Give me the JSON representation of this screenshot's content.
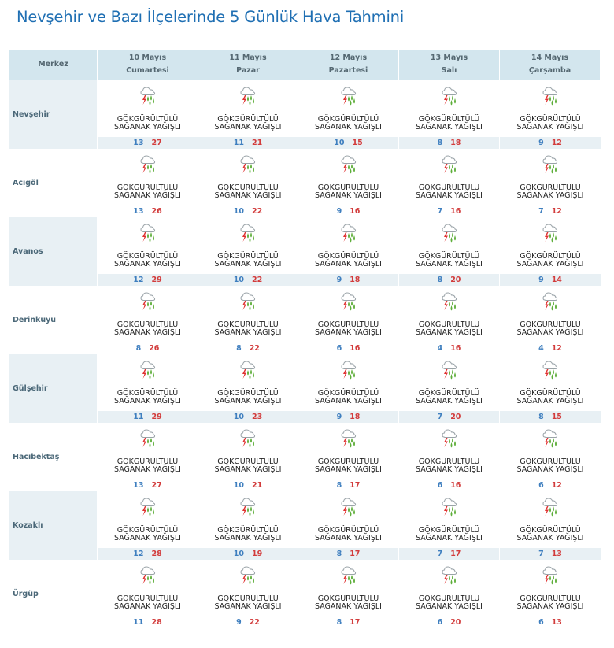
{
  "page_title": "Nevşehir ve Bazı İlçelerinde 5 Günlük Hava Tahmini",
  "header": {
    "city_col": "Merkez",
    "days": [
      {
        "date": "10 Mayıs",
        "weekday": "Cumartesi"
      },
      {
        "date": "11 Mayıs",
        "weekday": "Pazar"
      },
      {
        "date": "12 Mayıs",
        "weekday": "Pazartesi"
      },
      {
        "date": "13 Mayıs",
        "weekday": "Salı"
      },
      {
        "date": "14 Mayıs",
        "weekday": "Çarşamba"
      }
    ]
  },
  "condition": {
    "line1": "GÖKGÜRÜLTÜLÜ",
    "line2": "SAĞANAK YAĞIŞLI",
    "icon": "thunderstorm-rain-icon"
  },
  "rows": [
    {
      "city": "Nevşehir",
      "days": [
        {
          "min": "13",
          "max": "27"
        },
        {
          "min": "11",
          "max": "21"
        },
        {
          "min": "10",
          "max": "15"
        },
        {
          "min": "8",
          "max": "18"
        },
        {
          "min": "9",
          "max": "12"
        }
      ]
    },
    {
      "city": "Acıgöl",
      "days": [
        {
          "min": "13",
          "max": "26"
        },
        {
          "min": "10",
          "max": "22"
        },
        {
          "min": "9",
          "max": "16"
        },
        {
          "min": "7",
          "max": "16"
        },
        {
          "min": "7",
          "max": "12"
        }
      ]
    },
    {
      "city": "Avanos",
      "days": [
        {
          "min": "12",
          "max": "29"
        },
        {
          "min": "10",
          "max": "22"
        },
        {
          "min": "9",
          "max": "18"
        },
        {
          "min": "8",
          "max": "20"
        },
        {
          "min": "9",
          "max": "14"
        }
      ]
    },
    {
      "city": "Derinkuyu",
      "days": [
        {
          "min": "8",
          "max": "26"
        },
        {
          "min": "8",
          "max": "22"
        },
        {
          "min": "6",
          "max": "16"
        },
        {
          "min": "4",
          "max": "16"
        },
        {
          "min": "4",
          "max": "12"
        }
      ]
    },
    {
      "city": "Gülşehir",
      "days": [
        {
          "min": "11",
          "max": "29"
        },
        {
          "min": "10",
          "max": "23"
        },
        {
          "min": "9",
          "max": "18"
        },
        {
          "min": "7",
          "max": "20"
        },
        {
          "min": "8",
          "max": "15"
        }
      ]
    },
    {
      "city": "Hacıbektaş",
      "days": [
        {
          "min": "13",
          "max": "27"
        },
        {
          "min": "10",
          "max": "21"
        },
        {
          "min": "8",
          "max": "17"
        },
        {
          "min": "6",
          "max": "16"
        },
        {
          "min": "6",
          "max": "12"
        }
      ]
    },
    {
      "city": "Kozaklı",
      "days": [
        {
          "min": "12",
          "max": "28"
        },
        {
          "min": "10",
          "max": "19"
        },
        {
          "min": "8",
          "max": "17"
        },
        {
          "min": "7",
          "max": "17"
        },
        {
          "min": "7",
          "max": "13"
        }
      ]
    },
    {
      "city": "Ürgüp",
      "days": [
        {
          "min": "11",
          "max": "28"
        },
        {
          "min": "9",
          "max": "22"
        },
        {
          "min": "8",
          "max": "17"
        },
        {
          "min": "6",
          "max": "20"
        },
        {
          "min": "6",
          "max": "13"
        }
      ]
    }
  ],
  "colors": {
    "title": "#1f6fb3",
    "header_bg": "#d3e6ee",
    "row_shade": "#e8f0f4",
    "temp_min": "#3f7fbf",
    "temp_max": "#d23c3c"
  }
}
